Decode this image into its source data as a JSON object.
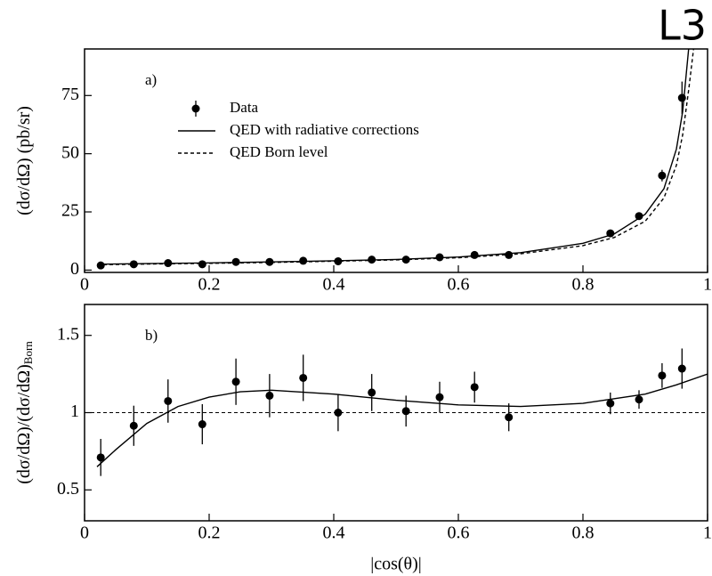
{
  "logo": "L3",
  "chart_data": [
    {
      "type": "scatter",
      "panel_label": "a)",
      "ylabel": "(dσ/dΩ) (pb/sr)",
      "xlim": [
        0,
        1
      ],
      "xticks": [
        0,
        0.2,
        0.4,
        0.6,
        0.8,
        1
      ],
      "ylim": [
        -1,
        95
      ],
      "yticks": [
        0,
        25,
        50,
        75
      ],
      "series": [
        {
          "name": "Data",
          "style": "points",
          "color": "#000000",
          "x": [
            0.026,
            0.079,
            0.134,
            0.189,
            0.243,
            0.297,
            0.351,
            0.407,
            0.461,
            0.516,
            0.57,
            0.626,
            0.681,
            0.844,
            0.89,
            0.927,
            0.959
          ],
          "values": [
            2,
            2.5,
            3,
            2.5,
            3.5,
            3.5,
            4,
            3.8,
            4.5,
            4.5,
            5.5,
            6.5,
            6.5,
            15.8,
            23.2,
            40.6,
            74
          ],
          "errors": [
            0.8,
            0.8,
            0.8,
            0.8,
            0.8,
            0.8,
            0.8,
            0.8,
            0.8,
            0.8,
            0.8,
            0.9,
            0.9,
            1,
            1.5,
            2.5,
            7
          ]
        },
        {
          "name": "QED with radiative corrections",
          "style": "solid",
          "color": "#000000",
          "x": [
            0.02,
            0.1,
            0.2,
            0.3,
            0.4,
            0.5,
            0.6,
            0.7,
            0.8,
            0.85,
            0.9,
            0.93,
            0.95,
            0.96,
            0.97
          ],
          "values": [
            2.5,
            2.8,
            3.1,
            3.5,
            4,
            4.6,
            5.6,
            7.5,
            11.5,
            15.5,
            24,
            35,
            52,
            68,
            96
          ]
        },
        {
          "name": "QED Born level",
          "style": "dashed",
          "color": "#000000",
          "x": [
            0.02,
            0.1,
            0.2,
            0.3,
            0.4,
            0.5,
            0.6,
            0.7,
            0.8,
            0.85,
            0.9,
            0.93,
            0.95,
            0.96,
            0.97,
            0.978
          ],
          "values": [
            2.3,
            2.6,
            2.9,
            3.3,
            3.8,
            4.4,
            5.3,
            7,
            10.5,
            14,
            21,
            31,
            45,
            58,
            78,
            96
          ]
        }
      ]
    },
    {
      "type": "scatter",
      "panel_label": "b)",
      "ylabel": "(dσ/dΩ)/(dσ/dΩ)",
      "ylabel_subscript": "Born",
      "xlabel": "|cos(θ)|",
      "xlim": [
        0,
        1
      ],
      "xticks": [
        0,
        0.2,
        0.4,
        0.6,
        0.8,
        1
      ],
      "ylim": [
        0.3,
        1.7
      ],
      "yticks": [
        0.5,
        1,
        1.5
      ],
      "reference_line": 1,
      "series": [
        {
          "style": "points",
          "color": "#000000",
          "x": [
            0.026,
            0.079,
            0.134,
            0.189,
            0.243,
            0.297,
            0.351,
            0.407,
            0.461,
            0.516,
            0.57,
            0.626,
            0.681,
            0.844,
            0.89,
            0.927,
            0.959
          ],
          "values": [
            0.71,
            0.915,
            1.075,
            0.925,
            1.2,
            1.11,
            1.225,
            1.0,
            1.13,
            1.01,
            1.1,
            1.165,
            0.97,
            1.06,
            1.085,
            1.24,
            1.285
          ],
          "errors": [
            0.12,
            0.13,
            0.14,
            0.13,
            0.15,
            0.14,
            0.15,
            0.12,
            0.12,
            0.1,
            0.1,
            0.1,
            0.09,
            0.07,
            0.06,
            0.08,
            0.13
          ]
        },
        {
          "style": "solid",
          "color": "#000000",
          "x": [
            0.02,
            0.05,
            0.1,
            0.15,
            0.2,
            0.25,
            0.3,
            0.4,
            0.5,
            0.6,
            0.7,
            0.8,
            0.9,
            0.95,
            1.0
          ],
          "values": [
            0.65,
            0.76,
            0.93,
            1.04,
            1.1,
            1.135,
            1.145,
            1.12,
            1.08,
            1.05,
            1.04,
            1.06,
            1.12,
            1.18,
            1.25
          ]
        }
      ]
    }
  ]
}
